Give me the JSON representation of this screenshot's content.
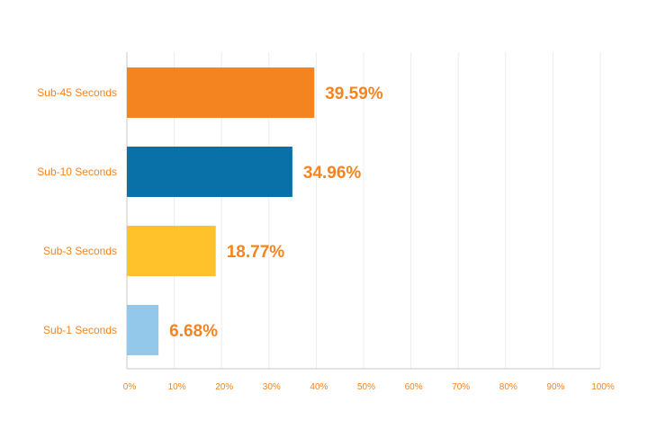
{
  "chart_data": {
    "type": "bar",
    "orientation": "horizontal",
    "title": "",
    "xlabel": "",
    "ylabel": "",
    "categories": [
      "Sub-45 Seconds",
      "Sub-10 Seconds",
      "Sub-3 Seconds",
      "Sub-1 Seconds"
    ],
    "values": [
      39.59,
      34.96,
      18.77,
      6.68
    ],
    "value_labels": [
      "39.59%",
      "34.96%",
      "18.77%",
      "6.68%"
    ],
    "bar_colors": [
      "#f4841f",
      "#0a70a8",
      "#ffc22b",
      "#93c8eb"
    ],
    "xlim": [
      0,
      100
    ],
    "x_ticks": [
      "0%",
      "10%",
      "20%",
      "30%",
      "40%",
      "50%",
      "60%",
      "70%",
      "80%",
      "90%",
      "100%"
    ],
    "grid": "vertical",
    "legend": "none"
  },
  "colors": {
    "label_accent": "#f4841f",
    "grid": "#ececec",
    "axis": "#c8c8c8"
  }
}
